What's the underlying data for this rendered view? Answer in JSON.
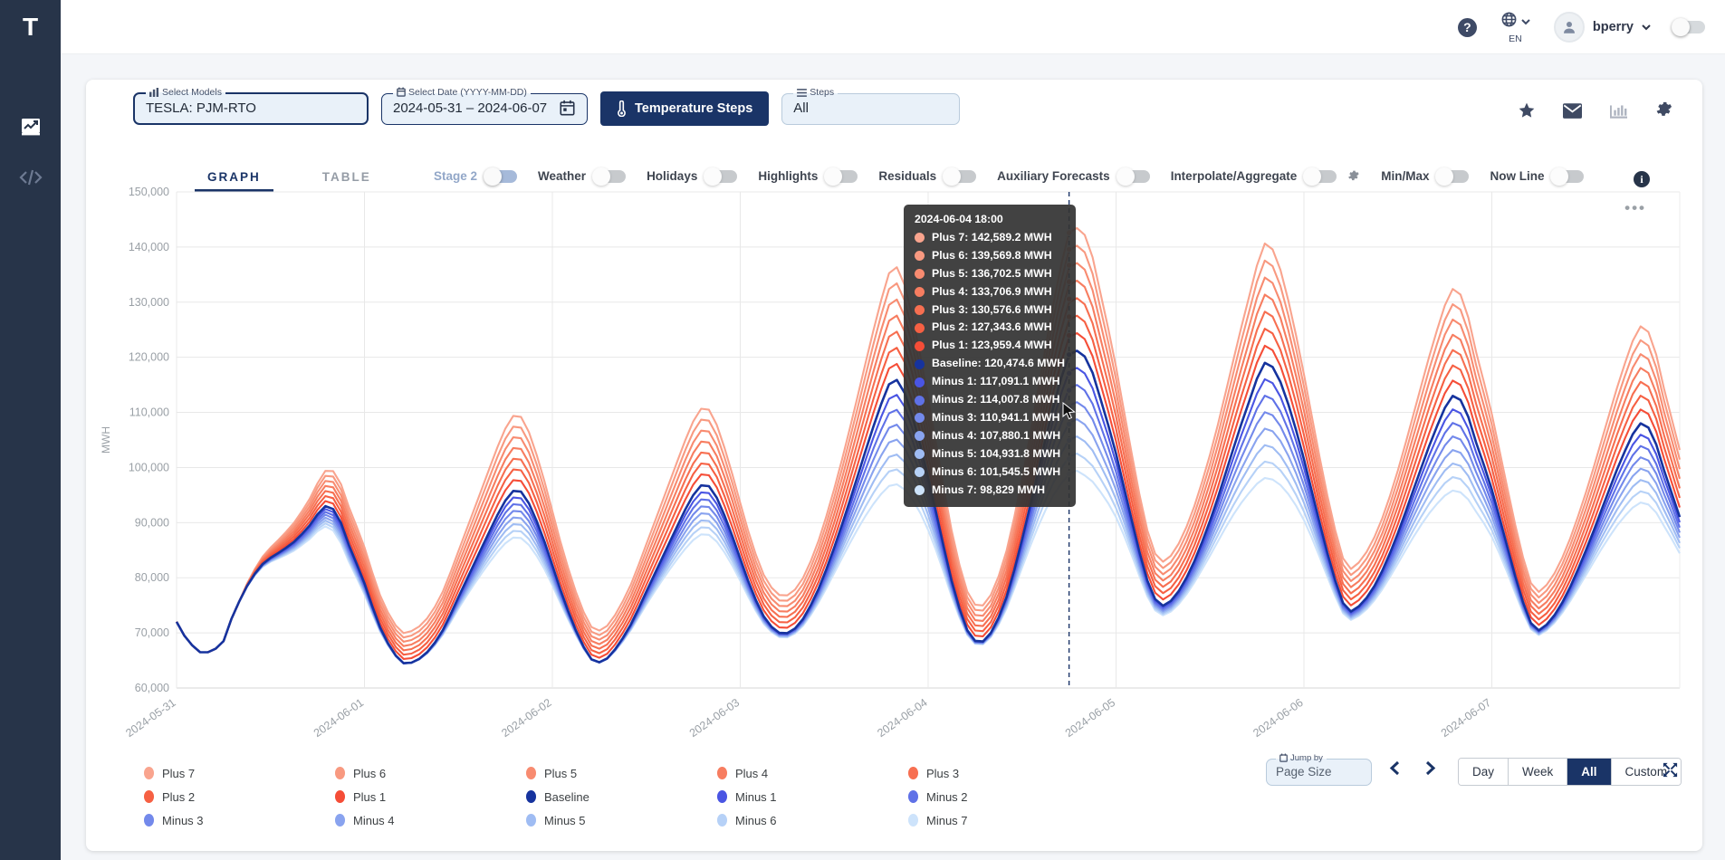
{
  "header": {
    "logo": "T",
    "help": "?",
    "language": "EN",
    "username": "bperry"
  },
  "sidebar": {
    "items": [
      {
        "icon": "chart-line-icon"
      },
      {
        "icon": "code-icon"
      }
    ]
  },
  "toolbar": {
    "select_models": {
      "label": "Select Models",
      "value": "TESLA: PJM-RTO"
    },
    "select_date": {
      "label": "Select Date (YYYY-MM-DD)",
      "value": "2024-05-31 – 2024-06-07"
    },
    "temperature_steps_label": "Temperature Steps",
    "steps": {
      "label": "Steps",
      "value": "All"
    }
  },
  "tabs": [
    {
      "label": "GRAPH"
    },
    {
      "label": "TABLE"
    }
  ],
  "toggles": [
    {
      "label": "Stage 2",
      "variant": "stage2",
      "on": false
    },
    {
      "label": "Weather",
      "on": false
    },
    {
      "label": "Holidays",
      "on": false
    },
    {
      "label": "Highlights",
      "on": false
    },
    {
      "label": "Residuals",
      "on": false
    },
    {
      "label": "Auxiliary Forecasts",
      "on": false
    },
    {
      "label": "Interpolate/Aggregate",
      "on": false,
      "gear": true
    },
    {
      "label": "Min/Max",
      "on": false
    },
    {
      "label": "Now Line",
      "on": false
    }
  ],
  "info_label": "i",
  "dots_menu": "•••",
  "tooltip": {
    "title": "2024-06-04 18:00",
    "rows": [
      {
        "series": "Plus 7",
        "value_mwh": 142589.2,
        "display": "Plus 7: 142,589.2 MWH"
      },
      {
        "series": "Plus 6",
        "value_mwh": 139569.8,
        "display": "Plus 6: 139,569.8 MWH"
      },
      {
        "series": "Plus 5",
        "value_mwh": 136702.5,
        "display": "Plus 5: 136,702.5 MWH"
      },
      {
        "series": "Plus 4",
        "value_mwh": 133706.9,
        "display": "Plus 4: 133,706.9 MWH"
      },
      {
        "series": "Plus 3",
        "value_mwh": 130576.6,
        "display": "Plus 3: 130,576.6 MWH"
      },
      {
        "series": "Plus 2",
        "value_mwh": 127343.6,
        "display": "Plus 2: 127,343.6 MWH"
      },
      {
        "series": "Plus 1",
        "value_mwh": 123959.4,
        "display": "Plus 1: 123,959.4 MWH"
      },
      {
        "series": "Baseline",
        "value_mwh": 120474.6,
        "display": "Baseline: 120,474.6 MWH"
      },
      {
        "series": "Minus 1",
        "value_mwh": 117091.1,
        "display": "Minus 1: 117,091.1 MWH"
      },
      {
        "series": "Minus 2",
        "value_mwh": 114007.8,
        "display": "Minus 2: 114,007.8 MWH"
      },
      {
        "series": "Minus 3",
        "value_mwh": 110941.1,
        "display": "Minus 3: 110,941.1 MWH"
      },
      {
        "series": "Minus 4",
        "value_mwh": 107880.1,
        "display": "Minus 4: 107,880.1 MWH"
      },
      {
        "series": "Minus 5",
        "value_mwh": 104931.8,
        "display": "Minus 5: 104,931.8 MWH"
      },
      {
        "series": "Minus 6",
        "value_mwh": 101545.5,
        "display": "Minus 6: 101,545.5 MWH"
      },
      {
        "series": "Minus 7",
        "value_mwh": 98829,
        "display": "Minus 7: 98,829 MWH"
      }
    ]
  },
  "footer": {
    "jump_by": {
      "label": "Jump by",
      "placeholder": "Page Size"
    },
    "range_buttons": [
      "Day",
      "Week",
      "All",
      "Custom"
    ],
    "active_range": "All"
  },
  "chart_data": {
    "type": "line",
    "ylabel": "MWH",
    "ylim": [
      60000,
      150000
    ],
    "ytick_step": 10000,
    "grid": true,
    "legend_position": "bottom",
    "x_axis_labels": [
      "2024-05-31",
      "2024-06-01",
      "2024-06-02",
      "2024-06-03",
      "2024-06-04",
      "2024-06-05",
      "2024-06-06",
      "2024-06-07"
    ],
    "hours_total": 192,
    "hours_per_day": 24,
    "series": [
      {
        "name": "Plus 7",
        "step": 7,
        "color": "#F9A48E"
      },
      {
        "name": "Plus 6",
        "step": 6,
        "color": "#F89980"
      },
      {
        "name": "Plus 5",
        "step": 5,
        "color": "#F88B70"
      },
      {
        "name": "Plus 4",
        "step": 4,
        "color": "#F77D60"
      },
      {
        "name": "Plus 3",
        "step": 3,
        "color": "#F76F51"
      },
      {
        "name": "Plus 2",
        "step": 2,
        "color": "#F66043"
      },
      {
        "name": "Plus 1",
        "step": 1,
        "color": "#F54D37"
      },
      {
        "name": "Baseline",
        "step": 0,
        "color": "#16339E"
      },
      {
        "name": "Minus 1",
        "step": -1,
        "color": "#4A55E3"
      },
      {
        "name": "Minus 2",
        "step": -2,
        "color": "#5F71E7"
      },
      {
        "name": "Minus 3",
        "step": -3,
        "color": "#7389EB"
      },
      {
        "name": "Minus 4",
        "step": -4,
        "color": "#89A3EF"
      },
      {
        "name": "Minus 5",
        "step": -5,
        "color": "#9FBCF3"
      },
      {
        "name": "Minus 6",
        "step": -6,
        "color": "#B6D1F7"
      },
      {
        "name": "Minus 7",
        "step": -7,
        "color": "#CDE3FB"
      }
    ],
    "baseline_anchors": [
      [
        0,
        72000
      ],
      [
        1,
        69500
      ],
      [
        3,
        66500
      ],
      [
        4.5,
        66800
      ],
      [
        6,
        68500
      ],
      [
        7,
        72500
      ],
      [
        9,
        78500
      ],
      [
        11,
        82500
      ],
      [
        13,
        84500
      ],
      [
        15,
        86500
      ],
      [
        17,
        89500
      ],
      [
        19,
        93000
      ],
      [
        20.5,
        91500
      ],
      [
        22,
        86000
      ],
      [
        24,
        79000
      ],
      [
        26,
        71000
      ],
      [
        28.5,
        65000
      ],
      [
        30,
        64600
      ],
      [
        32,
        66500
      ],
      [
        34,
        70500
      ],
      [
        36,
        76500
      ],
      [
        38,
        82500
      ],
      [
        40,
        88500
      ],
      [
        42,
        94000
      ],
      [
        43.5,
        96000
      ],
      [
        45,
        93500
      ],
      [
        47,
        86500
      ],
      [
        49,
        78000
      ],
      [
        51,
        70500
      ],
      [
        53,
        65200
      ],
      [
        54.5,
        64900
      ],
      [
        56,
        67000
      ],
      [
        58,
        71500
      ],
      [
        60,
        77500
      ],
      [
        62,
        83500
      ],
      [
        64,
        89500
      ],
      [
        66,
        95000
      ],
      [
        67.5,
        97000
      ],
      [
        69,
        94500
      ],
      [
        71,
        87500
      ],
      [
        73,
        79500
      ],
      [
        75,
        73000
      ],
      [
        77,
        70000
      ],
      [
        78.5,
        70300
      ],
      [
        80,
        72500
      ],
      [
        82,
        78000
      ],
      [
        84,
        85500
      ],
      [
        86,
        94000
      ],
      [
        88,
        103000
      ],
      [
        90,
        111500
      ],
      [
        91.5,
        116000
      ],
      [
        93,
        113500
      ],
      [
        95,
        104000
      ],
      [
        97,
        92000
      ],
      [
        99,
        79500
      ],
      [
        101,
        70500
      ],
      [
        102.5,
        68300
      ],
      [
        104,
        70000
      ],
      [
        106,
        76500
      ],
      [
        108,
        87000
      ],
      [
        110,
        99000
      ],
      [
        112,
        111000
      ],
      [
        114,
        120474.6
      ],
      [
        115,
        121200
      ],
      [
        116.5,
        119000
      ],
      [
        118,
        112500
      ],
      [
        120,
        102500
      ],
      [
        122,
        90500
      ],
      [
        124,
        79500
      ],
      [
        125.5,
        75200
      ],
      [
        127,
        75800
      ],
      [
        129,
        80000
      ],
      [
        131,
        86500
      ],
      [
        133,
        94500
      ],
      [
        135,
        103500
      ],
      [
        137,
        112000
      ],
      [
        139,
        119000
      ],
      [
        140.5,
        117000
      ],
      [
        142,
        111500
      ],
      [
        144,
        101500
      ],
      [
        146,
        90000
      ],
      [
        148,
        79500
      ],
      [
        149.5,
        74200
      ],
      [
        151,
        74800
      ],
      [
        153,
        78500
      ],
      [
        155,
        84500
      ],
      [
        157,
        92000
      ],
      [
        159,
        100000
      ],
      [
        161,
        107500
      ],
      [
        163,
        113000
      ],
      [
        164.5,
        111000
      ],
      [
        166,
        104500
      ],
      [
        168,
        96000
      ],
      [
        170,
        85500
      ],
      [
        172,
        75500
      ],
      [
        173.5,
        70700
      ],
      [
        175,
        71500
      ],
      [
        177,
        75500
      ],
      [
        179,
        81500
      ],
      [
        181,
        88500
      ],
      [
        183,
        96000
      ],
      [
        185,
        103000
      ],
      [
        187,
        108000
      ],
      [
        188.5,
        106000
      ],
      [
        190,
        99500
      ],
      [
        192,
        91000
      ]
    ],
    "fan": {
      "plus_step_fraction": 0.0228,
      "minus_step_fraction": 0.02232,
      "ramp_start_h": 8,
      "ramp_full_h": 30,
      "plus_shape_base": 0.55,
      "plus_shape_gain": 0.6,
      "minus_shape_pow": 1.25,
      "minus_shape_scale": 1.15,
      "shape_vmin": 64000,
      "shape_vspan": 56000
    },
    "crosshair": {
      "hour": 114,
      "label": "2024-06-04 18:00"
    }
  }
}
